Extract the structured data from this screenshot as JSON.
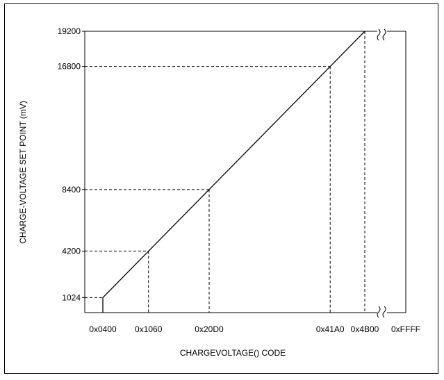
{
  "chart_data": {
    "type": "line",
    "title": "",
    "xlabel": "CHARGEVOLTAGE() CODE",
    "ylabel": "CHARGE-VOLTAGE SET POINT (mV)",
    "x_tick_labels": [
      "0x0400",
      "0x1060",
      "0x20D0",
      "0x41A0",
      "0x4B00",
      "0xFFFF"
    ],
    "y_tick_labels": [
      "1024",
      "4200",
      "8400",
      "16800",
      "19200"
    ],
    "xlim": [
      1024,
      19200
    ],
    "ylim": [
      0,
      19200
    ],
    "y_axis_break_markers": true,
    "series": [
      {
        "x": [
          1024,
          1024,
          19200
        ],
        "y": [
          0,
          1024,
          19200
        ]
      }
    ],
    "reference_points": [
      {
        "x": 1024,
        "y": 1024,
        "x_label": "0x0400",
        "y_label": "1024"
      },
      {
        "x": 4192,
        "y": 4200,
        "x_label": "0x1060",
        "y_label": "4200"
      },
      {
        "x": 8400,
        "y": 8400,
        "x_label": "0x20D0",
        "y_label": "8400"
      },
      {
        "x": 16800,
        "y": 16800,
        "x_label": "0x41A0",
        "y_label": "16800"
      },
      {
        "x": 19200,
        "y": 19200,
        "x_label": "0x4B00",
        "y_label": "19200"
      }
    ],
    "grid": false,
    "legend": "none"
  }
}
